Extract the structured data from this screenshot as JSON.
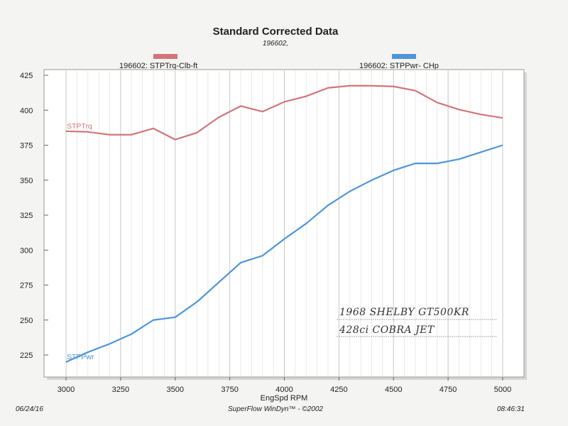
{
  "page": {
    "title": "Standard Corrected Data",
    "subtitle": "196602,",
    "footer_date": "06/24/16",
    "footer_software": "SuperFlow WinDyn™ - ©2002",
    "footer_time": "08:46:31",
    "handwritten_note_line1": "1968 SHELBY GT500KR",
    "handwritten_note_line2": "428ci COBRA JET"
  },
  "chart_data": {
    "type": "line",
    "title": "Standard Corrected Data",
    "subtitle": "196602,",
    "xlabel": "EngSpd  RPM",
    "ylabel": "",
    "xlim": [
      3000,
      5000
    ],
    "ylim": [
      210,
      425
    ],
    "x_ticks": [
      3000,
      3250,
      3500,
      3750,
      4000,
      4250,
      4500,
      4750,
      5000
    ],
    "y_ticks": [
      225,
      250,
      275,
      300,
      325,
      350,
      375,
      400,
      425
    ],
    "grid": true,
    "legend": [
      {
        "label": "196602: STPTrq-Clb-ft",
        "color": "#d0767a"
      },
      {
        "label": "196602: STPPwr- CHp",
        "color": "#4f95d8"
      }
    ],
    "x": [
      3000,
      3100,
      3200,
      3300,
      3400,
      3500,
      3600,
      3700,
      3800,
      3900,
      4000,
      4100,
      4200,
      4300,
      4400,
      4500,
      4600,
      4700,
      4800,
      4900,
      5000
    ],
    "series": [
      {
        "name": "STPTrq",
        "label": "196602: STPTrq-Clb-ft",
        "color": "#d0767a",
        "values": [
          385,
          384.5,
          382.5,
          382.5,
          387,
          379,
          384,
          395,
          403,
          399,
          406,
          410,
          416,
          417.5,
          417.5,
          417,
          414,
          405.5,
          400.5,
          397,
          394.5
        ]
      },
      {
        "name": "STPPwr",
        "label": "196602: STPPwr- CHp",
        "color": "#4f95d8",
        "values": [
          220,
          227,
          233,
          240,
          250,
          252,
          263,
          277,
          291,
          296,
          308,
          319,
          332,
          342,
          350,
          357,
          362,
          362,
          365,
          370,
          375
        ]
      }
    ]
  }
}
